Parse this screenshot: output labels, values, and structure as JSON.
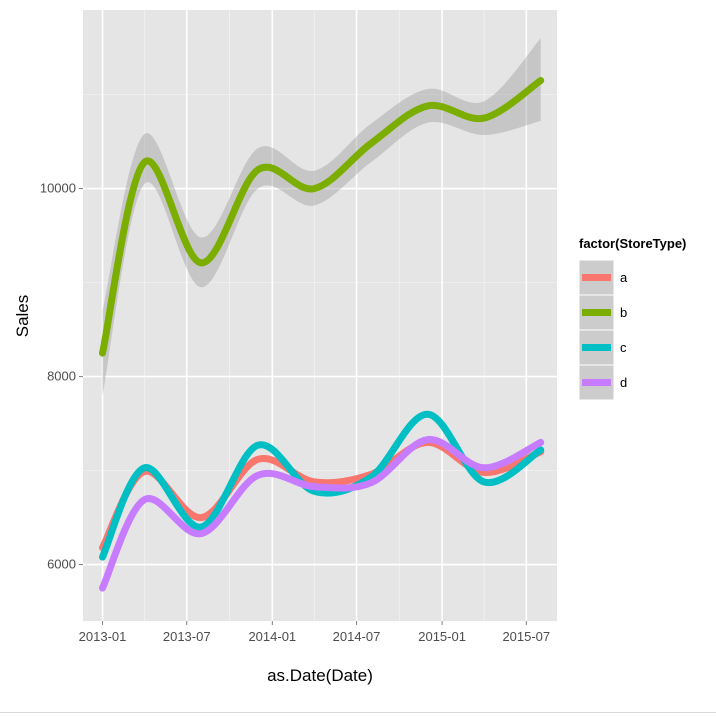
{
  "chart_data": {
    "type": "line",
    "xlabel": "as.Date(Date)",
    "ylabel": "Sales",
    "x_ticks": [
      "2013-01",
      "2013-07",
      "2014-01",
      "2014-07",
      "2015-01",
      "2015-07"
    ],
    "y_ticks": [
      "6000",
      "8000",
      "10000"
    ],
    "xlim": [
      "2012-11-20",
      "2015-09-05"
    ],
    "ylim": [
      5400,
      11900
    ],
    "grid": true,
    "smoothed_with_confidence_band": true,
    "legend": {
      "title": "factor(StoreType)",
      "position": "right"
    },
    "x": [
      "2013-01-01",
      "2013-04-01",
      "2013-08-01",
      "2013-12-01",
      "2014-04-01",
      "2014-08-01",
      "2014-12-01",
      "2015-04-01",
      "2015-08-01"
    ],
    "series": [
      {
        "name": "a",
        "color": "#F8766D",
        "values": [
          6180,
          6990,
          6500,
          7120,
          6880,
          6960,
          7300,
          6980,
          7200
        ]
      },
      {
        "name": "b",
        "color": "#7CAE00",
        "values": [
          8250,
          10280,
          9210,
          10200,
          10000,
          10480,
          10880,
          10750,
          11150
        ],
        "band_lower": [
          7800,
          10050,
          8950,
          10000,
          9820,
          10280,
          10700,
          10570,
          10720
        ],
        "band_upper": [
          8700,
          10580,
          9480,
          10430,
          10190,
          10690,
          11060,
          10930,
          11600
        ]
      },
      {
        "name": "c",
        "color": "#00BFC4",
        "values": [
          6080,
          7030,
          6400,
          7270,
          6780,
          6930,
          7600,
          6880,
          7220
        ]
      },
      {
        "name": "d",
        "color": "#C77CFF",
        "values": [
          5750,
          6690,
          6330,
          6950,
          6830,
          6870,
          7330,
          7030,
          7300
        ]
      }
    ]
  }
}
